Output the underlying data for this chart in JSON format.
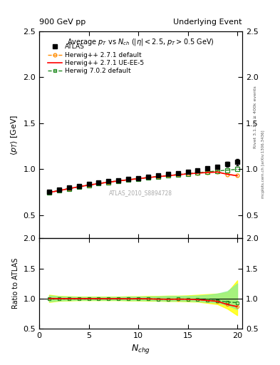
{
  "title_left": "900 GeV pp",
  "title_right": "Underlying Event",
  "plot_title": "Average $p_T$ vs $N_{ch}$ ($|\\eta| < 2.5$, $p_T > 0.5$ GeV)",
  "ylabel_main": "$\\langle p_T \\rangle$ [GeV]",
  "ylabel_ratio": "Ratio to ATLAS",
  "xlabel": "$N_{chg}$",
  "watermark": "ATLAS_2010_S8894728",
  "side_text1": "Rivet 3.1.10, ≥ 400k events",
  "side_text2": "mcplots.cern.ch [arXiv:1306.3436]",
  "ylim_main": [
    0.25,
    2.5
  ],
  "ylim_ratio": [
    0.5,
    2.0
  ],
  "xlim": [
    0.0,
    20.5
  ],
  "atlas_x": [
    1,
    2,
    3,
    4,
    5,
    6,
    7,
    8,
    9,
    10,
    11,
    12,
    13,
    14,
    15,
    16,
    17,
    18,
    19,
    20
  ],
  "atlas_y": [
    0.755,
    0.775,
    0.8,
    0.82,
    0.84,
    0.855,
    0.87,
    0.88,
    0.895,
    0.905,
    0.92,
    0.935,
    0.948,
    0.96,
    0.97,
    0.985,
    1.01,
    1.025,
    1.055,
    1.08
  ],
  "atlas_yerr": [
    0.015,
    0.012,
    0.01,
    0.01,
    0.01,
    0.009,
    0.009,
    0.009,
    0.009,
    0.009,
    0.009,
    0.009,
    0.01,
    0.01,
    0.012,
    0.013,
    0.016,
    0.02,
    0.025,
    0.035
  ],
  "hw271def_x": [
    1,
    2,
    3,
    4,
    5,
    6,
    7,
    8,
    9,
    10,
    11,
    12,
    13,
    14,
    15,
    16,
    17,
    18,
    19,
    20
  ],
  "hw271def_y": [
    0.748,
    0.768,
    0.79,
    0.81,
    0.828,
    0.845,
    0.86,
    0.874,
    0.886,
    0.898,
    0.91,
    0.92,
    0.93,
    0.94,
    0.95,
    0.958,
    0.965,
    0.97,
    0.945,
    0.93
  ],
  "hw271uee5_x": [
    1,
    2,
    3,
    4,
    5,
    6,
    7,
    8,
    9,
    10,
    11,
    12,
    13,
    14,
    15,
    16,
    17,
    18,
    19,
    20
  ],
  "hw271uee5_y": [
    0.748,
    0.768,
    0.79,
    0.81,
    0.828,
    0.845,
    0.86,
    0.874,
    0.886,
    0.898,
    0.91,
    0.92,
    0.93,
    0.94,
    0.95,
    0.958,
    0.965,
    0.97,
    0.945,
    0.93
  ],
  "hw702def_x": [
    1,
    2,
    3,
    4,
    5,
    6,
    7,
    8,
    9,
    10,
    11,
    12,
    13,
    14,
    15,
    16,
    17,
    18,
    19,
    20
  ],
  "hw702def_y": [
    0.748,
    0.768,
    0.79,
    0.81,
    0.828,
    0.845,
    0.86,
    0.874,
    0.886,
    0.898,
    0.91,
    0.92,
    0.932,
    0.942,
    0.952,
    0.962,
    0.972,
    0.982,
    0.99,
    1.0
  ],
  "ratio_hw271def": [
    1.0,
    0.998,
    0.998,
    0.998,
    0.998,
    0.997,
    0.996,
    0.997,
    0.994,
    0.997,
    0.993,
    0.989,
    0.987,
    0.988,
    0.987,
    0.98,
    0.967,
    0.952,
    0.9,
    0.864
  ],
  "ratio_hw271uee5": [
    1.0,
    0.998,
    0.998,
    0.998,
    0.998,
    0.997,
    0.996,
    0.997,
    0.994,
    0.997,
    0.993,
    0.989,
    0.987,
    0.988,
    0.987,
    0.98,
    0.967,
    0.952,
    0.9,
    0.864
  ],
  "ratio_hw702def": [
    1.0,
    0.998,
    0.998,
    0.998,
    0.998,
    0.997,
    0.996,
    0.997,
    0.994,
    0.997,
    0.993,
    0.989,
    0.988,
    0.99,
    0.989,
    0.983,
    0.972,
    0.963,
    0.942,
    0.929
  ],
  "band_yellow_lo": [
    0.94,
    0.96,
    0.965,
    0.97,
    0.97,
    0.97,
    0.97,
    0.97,
    0.965,
    0.965,
    0.96,
    0.96,
    0.955,
    0.955,
    0.95,
    0.945,
    0.925,
    0.905,
    0.83,
    0.72
  ],
  "band_yellow_hi": [
    1.06,
    1.04,
    1.035,
    1.03,
    1.03,
    1.03,
    1.03,
    1.03,
    1.035,
    1.035,
    1.04,
    1.04,
    1.045,
    1.045,
    1.05,
    1.06,
    1.07,
    1.08,
    1.1,
    1.3
  ],
  "band_green_lo": [
    0.95,
    0.965,
    0.97,
    0.975,
    0.975,
    0.975,
    0.975,
    0.975,
    0.97,
    0.97,
    0.967,
    0.965,
    0.96,
    0.96,
    0.958,
    0.952,
    0.94,
    0.93,
    0.89,
    0.82
  ],
  "band_green_hi": [
    1.05,
    1.035,
    1.03,
    1.025,
    1.025,
    1.025,
    1.025,
    1.025,
    1.03,
    1.03,
    1.033,
    1.035,
    1.04,
    1.04,
    1.042,
    1.048,
    1.06,
    1.08,
    1.12,
    1.25
  ],
  "color_hw271def": "#FF8C00",
  "color_hw271uee5": "#FF0000",
  "color_hw702def": "#228B22",
  "bg_color": "#ffffff",
  "xticks": [
    0,
    5,
    10,
    15,
    20
  ],
  "yticks_main": [
    0.5,
    1.0,
    1.5,
    2.0,
    2.5
  ],
  "yticks_ratio": [
    0.5,
    1.0,
    1.5,
    2.0
  ]
}
